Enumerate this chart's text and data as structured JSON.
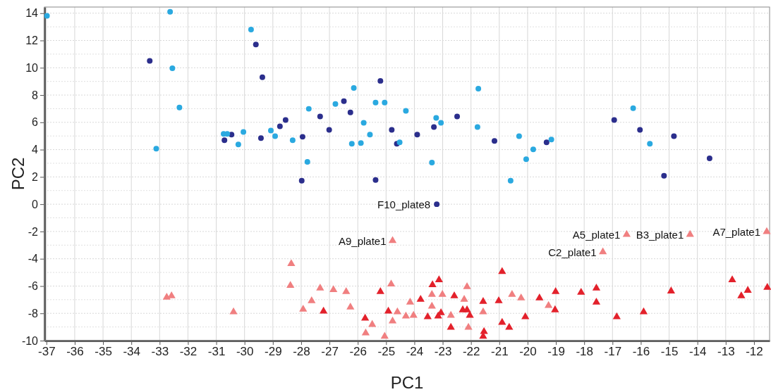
{
  "chart_data": {
    "type": "scatter",
    "xlabel": "PC1",
    "ylabel": "PC2",
    "xlim": [
      -37.07,
      -11.45
    ],
    "ylim": [
      -10,
      14.45
    ],
    "xticks": [
      -37,
      -36,
      -35,
      -34,
      -33,
      -32,
      -31,
      -30,
      -29,
      -28,
      -27,
      -26,
      -25,
      -24,
      -23,
      -22,
      -21,
      -20,
      -19,
      -18,
      -17,
      -16,
      -15,
      -14,
      -13,
      -12
    ],
    "yticks": [
      -10,
      -8,
      -6,
      -4,
      -2,
      0,
      2,
      4,
      6,
      8,
      10,
      12,
      14
    ],
    "grid": true,
    "series": [
      {
        "color": "#2b2e8c",
        "marker": "circle",
        "x": [
          -33.35,
          -29.6,
          -29.37,
          -28.55,
          -28.75,
          -30.46,
          -30.71,
          -29.42,
          -27.95,
          -27.98,
          -25.2,
          -26.49,
          -26.26,
          -27.33,
          -27.01,
          -24.8,
          -23.9,
          -23.31,
          -22.49,
          -24.62,
          -21.17,
          -19.33,
          -25.37,
          -23.21,
          -16.94,
          -16.03,
          -14.83,
          -13.57,
          -15.18
        ],
        "values": [
          10.5,
          11.7,
          9.3,
          6.17,
          5.71,
          5.1,
          4.69,
          4.84,
          4.94,
          1.72,
          9.04,
          7.55,
          6.73,
          6.43,
          5.45,
          5.45,
          5.1,
          5.66,
          6.43,
          4.43,
          4.64,
          4.53,
          1.77,
          0,
          6.17,
          5.45,
          4.99,
          3.36,
          2.08
        ]
      },
      {
        "color": "#2aa9e0",
        "marker": "circle",
        "x": [
          -36.98,
          -32.63,
          -29.77,
          -32.55,
          -32.3,
          -33.12,
          -30.74,
          -30.61,
          -30.04,
          -30.22,
          -29.07,
          -28.92,
          -28.3,
          -27.78,
          -27.73,
          -26.79,
          -26.14,
          -25.79,
          -25.57,
          -26.21,
          -25.89,
          -25.37,
          -25.05,
          -24.52,
          -24.3,
          -23.23,
          -23.06,
          -23.38,
          -21.74,
          -21.77,
          -20.3,
          -20.05,
          -19.8,
          -19.16,
          -20.6,
          -16.27,
          -15.68
        ],
        "values": [
          13.8,
          14.1,
          12.8,
          9.96,
          7.09,
          4.07,
          5.15,
          5.15,
          5.3,
          4.38,
          5.4,
          4.99,
          4.69,
          3.1,
          6.99,
          7.35,
          8.52,
          5.96,
          5.1,
          4.43,
          4.48,
          7.45,
          7.45,
          4.53,
          6.84,
          6.32,
          5.97,
          3.05,
          8.47,
          5.66,
          4.99,
          3.3,
          4.02,
          4.74,
          1.72,
          7.04,
          4.43
        ]
      },
      {
        "color": "#e3212b",
        "marker": "triangle",
        "x": [
          -27.21,
          -25.74,
          -25.2,
          -24.92,
          -23.78,
          -23.53,
          -23.36,
          -23.13,
          -23.16,
          -23.06,
          -22.59,
          -22.29,
          -22.14,
          -22.04,
          -22.71,
          -21.57,
          -21.54,
          -21.57,
          -20.9,
          -21.02,
          -20.9,
          -20.65,
          -20.08,
          -19.58,
          -19.01,
          -19.03,
          -18.11,
          -17.57,
          -17.57,
          -16.85,
          -15.9,
          -14.93,
          -12.77,
          -12.45,
          -12.22,
          -11.53
        ],
        "values": [
          -7.85,
          -8.36,
          -6.42,
          -7.85,
          -6.98,
          -8.26,
          -5.91,
          -5.55,
          -8.21,
          -7.96,
          -6.73,
          -7.75,
          -7.75,
          -8.16,
          -9.03,
          -7.14,
          -9.34,
          -9.69,
          -4.94,
          -7.08,
          -8.67,
          -9.03,
          -8.26,
          -6.88,
          -6.42,
          -7.75,
          -6.47,
          -6.16,
          -7.19,
          -8.26,
          -7.9,
          -6.37,
          -5.55,
          -6.73,
          -6.32,
          -6.11
        ]
      },
      {
        "color": "#f07f80",
        "marker": "triangle",
        "x": [
          -32.75,
          -32.58,
          -30.39,
          -28.35,
          -28.38,
          -27.93,
          -27.63,
          -27.33,
          -26.86,
          -26.41,
          -26.26,
          -24.77,
          -24.82,
          -25.49,
          -25.72,
          -25.05,
          -24.77,
          -24.6,
          -24.3,
          -24.15,
          -24.03,
          -23.38,
          -23.38,
          -23.01,
          -22.71,
          -22.14,
          -22.24,
          -22.09,
          -21.57,
          -20.55,
          -20.23,
          -19.26,
          -16.5,
          -17.34,
          -14.26,
          -11.55
        ],
        "values": [
          -6.83,
          -6.73,
          -7.9,
          -4.37,
          -5.96,
          -7.7,
          -7.08,
          -6.16,
          -6.27,
          -6.42,
          -7.55,
          -2.68,
          -5.86,
          -8.82,
          -9.44,
          -9.69,
          -8.57,
          -7.9,
          -8.21,
          -7.19,
          -8.16,
          -6.62,
          -7.49,
          -6.62,
          -8.16,
          -6.06,
          -6.98,
          -9.03,
          -7.9,
          -6.62,
          -6.88,
          -7.44,
          -2.22,
          -3.5,
          -2.22,
          -2.02
        ]
      }
    ],
    "annotations": [
      {
        "text": "F10_plate8",
        "x": -23.21,
        "y": 0
      },
      {
        "text": "A9_plate1",
        "x": -24.77,
        "y": -2.68
      },
      {
        "text": "A5_plate1",
        "x": -16.5,
        "y": -2.22
      },
      {
        "text": "C2_plate1",
        "x": -17.34,
        "y": -3.5
      },
      {
        "text": "B3_plate1",
        "x": -14.26,
        "y": -2.22
      },
      {
        "text": "A7_plate1",
        "x": -11.55,
        "y": -2.02
      }
    ]
  }
}
